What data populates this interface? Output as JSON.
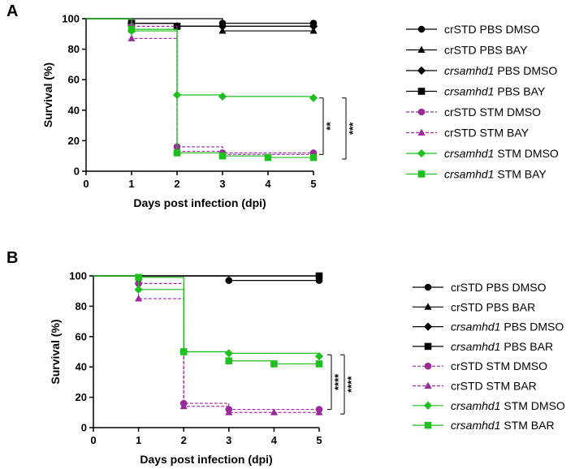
{
  "chart_data": [
    {
      "panel_label": "A",
      "type": "line",
      "step": true,
      "xlabel": "Days post infection (dpi)",
      "ylabel": "Survival (%)",
      "xlim": [
        0,
        5
      ],
      "ylim": [
        0,
        100
      ],
      "xticks": [
        0,
        1,
        2,
        3,
        4,
        5
      ],
      "yticks": [
        0,
        20,
        40,
        60,
        80,
        100
      ],
      "legend_position": "right",
      "series": [
        {
          "name": "crSTD PBS DMSO",
          "name_italic": "",
          "name_rest": "crSTD PBS DMSO",
          "color": "#000000",
          "marker": "circle",
          "dashed": false,
          "x": [
            0,
            1,
            2,
            3,
            5
          ],
          "y": [
            100,
            100,
            100,
            97,
            97
          ],
          "marker_x": [
            1,
            3,
            5
          ],
          "marker_y": [
            97,
            97,
            97
          ]
        },
        {
          "name": "crSTD PBS BAY",
          "name_italic": "",
          "name_rest": "crSTD PBS BAY",
          "color": "#000000",
          "marker": "triangle",
          "dashed": false,
          "x": [
            0,
            1,
            2,
            3,
            5
          ],
          "y": [
            100,
            97,
            95,
            92,
            92
          ],
          "marker_x": [
            1,
            2,
            3,
            5
          ],
          "marker_y": [
            97,
            95,
            92,
            92
          ]
        },
        {
          "name": "crsamhd1 PBS DMSO",
          "name_italic": "crsamhd1",
          "name_rest": " PBS DMSO",
          "color": "#000000",
          "marker": "diamond",
          "dashed": false,
          "x": [
            0,
            1,
            2,
            3,
            5
          ],
          "y": [
            100,
            97,
            95,
            95,
            95
          ],
          "marker_x": [
            1,
            2,
            3,
            5
          ],
          "marker_y": [
            97,
            95,
            95,
            95
          ]
        },
        {
          "name": "crsamhd1 PBS BAY",
          "name_italic": "crsamhd1",
          "name_rest": " PBS BAY",
          "color": "#000000",
          "marker": "square",
          "dashed": false,
          "x": [
            0,
            1,
            2,
            3,
            5
          ],
          "y": [
            100,
            97,
            95,
            95,
            95
          ],
          "marker_x": [
            1,
            2
          ],
          "marker_y": [
            97,
            95
          ]
        },
        {
          "name": "crSTD STM DMSO",
          "name_italic": "",
          "name_rest": "crSTD STM DMSO",
          "color": "#9b2a9b",
          "marker": "circle",
          "dashed": true,
          "x": [
            0,
            1,
            2,
            3,
            5
          ],
          "y": [
            100,
            95,
            16,
            12,
            12
          ],
          "marker_x": [
            1,
            2,
            3,
            5
          ],
          "marker_y": [
            95,
            16,
            12,
            12
          ]
        },
        {
          "name": "crSTD STM BAY",
          "name_italic": "",
          "name_rest": "crSTD STM BAY",
          "color": "#9b2a9b",
          "marker": "triangle",
          "dashed": true,
          "x": [
            0,
            1,
            2,
            3,
            5
          ],
          "y": [
            100,
            87,
            13,
            11,
            11
          ],
          "marker_x": [
            1,
            2
          ],
          "marker_y": [
            87,
            13
          ]
        },
        {
          "name": "crsamhd1 STM DMSO",
          "name_italic": "crsamhd1",
          "name_rest": " STM DMSO",
          "color": "#1fbf1f",
          "marker": "diamond",
          "dashed": false,
          "x": [
            0,
            1,
            2,
            3,
            5
          ],
          "y": [
            100,
            92,
            50,
            49,
            48
          ],
          "marker_x": [
            1,
            2,
            3,
            5
          ],
          "marker_y": [
            92,
            50,
            49,
            48
          ]
        },
        {
          "name": "crsamhd1 STM BAY",
          "name_italic": "crsamhd1",
          "name_rest": " STM BAY",
          "color": "#1fbf1f",
          "marker": "square",
          "dashed": false,
          "x": [
            0,
            1,
            2,
            3,
            4,
            5
          ],
          "y": [
            100,
            93,
            12,
            10,
            9,
            9
          ],
          "marker_x": [
            1,
            2,
            3,
            4,
            5
          ],
          "marker_y": [
            93,
            12,
            10,
            9,
            9
          ]
        }
      ],
      "significance": [
        {
          "label": "**",
          "y_range": [
            11,
            48
          ]
        },
        {
          "label": "***",
          "y_range": [
            8,
            48
          ]
        }
      ]
    },
    {
      "panel_label": "B",
      "type": "line",
      "step": true,
      "xlabel": "Days post infection (dpi)",
      "ylabel": "Survival (%)",
      "xlim": [
        0,
        5
      ],
      "ylim": [
        0,
        100
      ],
      "xticks": [
        0,
        1,
        2,
        3,
        4,
        5
      ],
      "yticks": [
        0,
        20,
        40,
        60,
        80,
        100
      ],
      "legend_position": "right",
      "series": [
        {
          "name": "crSTD PBS DMSO",
          "name_italic": "",
          "name_rest": "crSTD PBS DMSO",
          "color": "#000000",
          "marker": "circle",
          "dashed": false,
          "x": [
            0,
            1,
            2,
            3,
            5
          ],
          "y": [
            100,
            100,
            100,
            97,
            97
          ],
          "marker_x": [
            3,
            5
          ],
          "marker_y": [
            97,
            97
          ]
        },
        {
          "name": "crSTD PBS BAR",
          "name_italic": "",
          "name_rest": "crSTD PBS BAR",
          "color": "#000000",
          "marker": "triangle",
          "dashed": false,
          "x": [
            0,
            1,
            2,
            3,
            5
          ],
          "y": [
            100,
            100,
            100,
            100,
            100
          ],
          "marker_x": [],
          "marker_y": []
        },
        {
          "name": "crsamhd1 PBS DMSO",
          "name_italic": "crsamhd1",
          "name_rest": " PBS DMSO",
          "color": "#000000",
          "marker": "diamond",
          "dashed": false,
          "x": [
            0,
            1,
            2,
            3,
            5
          ],
          "y": [
            100,
            100,
            100,
            100,
            100
          ],
          "marker_x": [],
          "marker_y": []
        },
        {
          "name": "crsamhd1 PBS BAR",
          "name_italic": "crsamhd1",
          "name_rest": " PBS BAR",
          "color": "#000000",
          "marker": "square",
          "dashed": false,
          "x": [
            0,
            1,
            2,
            3,
            5
          ],
          "y": [
            100,
            100,
            100,
            100,
            100
          ],
          "marker_x": [
            5
          ],
          "marker_y": [
            100
          ]
        },
        {
          "name": "crSTD STM DMSO",
          "name_italic": "",
          "name_rest": "crSTD STM DMSO",
          "color": "#9b2a9b",
          "marker": "circle",
          "dashed": true,
          "x": [
            0,
            1,
            2,
            3,
            5
          ],
          "y": [
            100,
            95,
            16,
            12,
            12
          ],
          "marker_x": [
            1,
            2,
            3,
            5
          ],
          "marker_y": [
            95,
            16,
            12,
            12
          ]
        },
        {
          "name": "crSTD STM BAR",
          "name_italic": "",
          "name_rest": "crSTD STM BAR",
          "color": "#9b2a9b",
          "marker": "triangle",
          "dashed": true,
          "x": [
            0,
            1,
            2,
            3,
            5
          ],
          "y": [
            100,
            85,
            14,
            10,
            10
          ],
          "marker_x": [
            1,
            2,
            3,
            4,
            5
          ],
          "marker_y": [
            85,
            14,
            10,
            10,
            10
          ]
        },
        {
          "name": "crsamhd1 STM DMSO",
          "name_italic": "crsamhd1",
          "name_rest": " STM DMSO",
          "color": "#1fbf1f",
          "marker": "diamond",
          "dashed": false,
          "x": [
            0,
            1,
            2,
            3,
            5
          ],
          "y": [
            100,
            91,
            50,
            49,
            47
          ],
          "marker_x": [
            1,
            2,
            3,
            5
          ],
          "marker_y": [
            91,
            50,
            49,
            47
          ]
        },
        {
          "name": "crsamhd1 STM BAR",
          "name_italic": "crsamhd1",
          "name_rest": " STM BAR",
          "color": "#1fbf1f",
          "marker": "square",
          "dashed": false,
          "x": [
            0,
            1,
            2,
            3,
            4,
            5
          ],
          "y": [
            100,
            99,
            50,
            44,
            42,
            42
          ],
          "marker_x": [
            1,
            2,
            3,
            4,
            5
          ],
          "marker_y": [
            99,
            50,
            44,
            42,
            42
          ]
        }
      ],
      "significance": [
        {
          "label": "****",
          "y_range": [
            12,
            48
          ]
        },
        {
          "label": "****",
          "y_range": [
            9,
            48
          ]
        }
      ]
    }
  ]
}
